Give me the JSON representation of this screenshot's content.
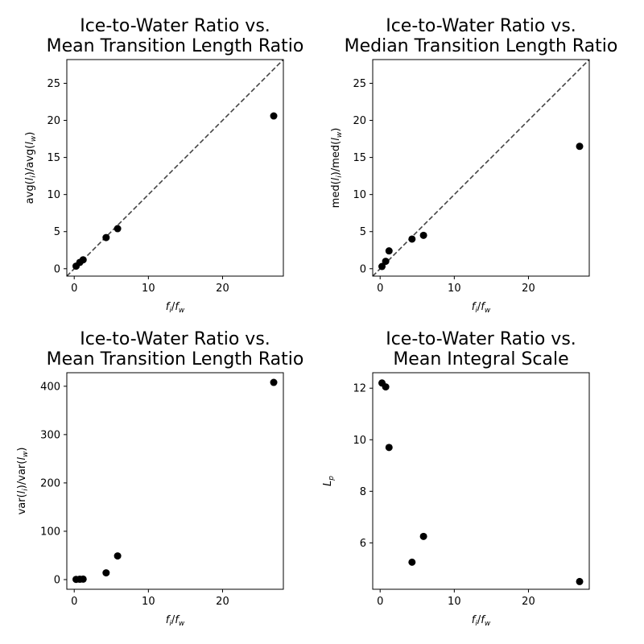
{
  "chart_data": [
    {
      "type": "scatter",
      "title": [
        "Ice-to-Water Ratio vs.",
        "Mean Transition Length Ratio"
      ],
      "xlabel": {
        "base": "f",
        "sub1": "i",
        "sep": "/",
        "base2": "f",
        "sub2": "w"
      },
      "ylabel": {
        "pre": "avg(",
        "var1": "l",
        "sub1": "i",
        "mid": ")/avg(",
        "var2": "l",
        "sub2": "w",
        "post": ")"
      },
      "xlim": [
        -1,
        28.2
      ],
      "ylim": [
        -1,
        28.2
      ],
      "xticks": [
        0,
        10,
        20
      ],
      "yticks": [
        0,
        5,
        10,
        15,
        20,
        25
      ],
      "reference_line": "y=x",
      "x": [
        0.25,
        0.75,
        1.2,
        4.3,
        5.85,
        26.9
      ],
      "y": [
        0.35,
        0.85,
        1.2,
        4.2,
        5.4,
        20.6
      ]
    },
    {
      "type": "scatter",
      "title": [
        "Ice-to-Water Ratio vs.",
        "Median Transition Length Ratio"
      ],
      "xlabel": {
        "base": "f",
        "sub1": "i",
        "sep": "/",
        "base2": "f",
        "sub2": "w"
      },
      "ylabel": {
        "pre": "med(",
        "var1": "l",
        "sub1": "i",
        "mid": ")/med(",
        "var2": "l",
        "sub2": "w",
        "post": ")"
      },
      "xlim": [
        -1,
        28.2
      ],
      "ylim": [
        -1,
        28.2
      ],
      "xticks": [
        0,
        10,
        20
      ],
      "yticks": [
        0,
        5,
        10,
        15,
        20,
        25
      ],
      "reference_line": "y=x",
      "x": [
        0.25,
        0.75,
        1.2,
        4.3,
        5.85,
        26.9
      ],
      "y": [
        0.3,
        1.0,
        2.4,
        4.0,
        4.5,
        16.5
      ]
    },
    {
      "type": "scatter",
      "title": [
        "Ice-to-Water Ratio vs.",
        "Mean Transition Length Ratio"
      ],
      "xlabel": {
        "base": "f",
        "sub1": "i",
        "sep": "/",
        "base2": "f",
        "sub2": "w"
      },
      "ylabel": {
        "pre": "var(",
        "var1": "l",
        "sub1": "i",
        "mid": ")/var(",
        "var2": "l",
        "sub2": "w",
        "post": ")"
      },
      "xlim": [
        -1,
        28.2
      ],
      "ylim": [
        -20,
        428
      ],
      "xticks": [
        0,
        10,
        20
      ],
      "yticks": [
        0,
        100,
        200,
        300,
        400
      ],
      "reference_line": null,
      "x": [
        0.25,
        0.75,
        1.2,
        4.3,
        5.85,
        26.9
      ],
      "y": [
        0.5,
        0.8,
        1.0,
        14,
        49,
        408
      ]
    },
    {
      "type": "scatter",
      "title": [
        "Ice-to-Water Ratio vs.",
        "Mean Integral Scale"
      ],
      "xlabel": {
        "base": "f",
        "sub1": "i",
        "sep": "/",
        "base2": "f",
        "sub2": "w"
      },
      "ylabel": {
        "pre": "",
        "var1": "L",
        "sub1": "p",
        "mid": "",
        "var2": "",
        "sub2": "",
        "post": ""
      },
      "xlim": [
        -1,
        28.2
      ],
      "ylim": [
        4.2,
        12.6
      ],
      "xticks": [
        0,
        10,
        20
      ],
      "yticks": [
        6,
        8,
        10,
        12
      ],
      "reference_line": null,
      "x": [
        0.25,
        0.75,
        1.2,
        4.3,
        5.85,
        26.9
      ],
      "y": [
        12.2,
        12.05,
        9.7,
        5.25,
        6.25,
        4.5
      ]
    }
  ]
}
